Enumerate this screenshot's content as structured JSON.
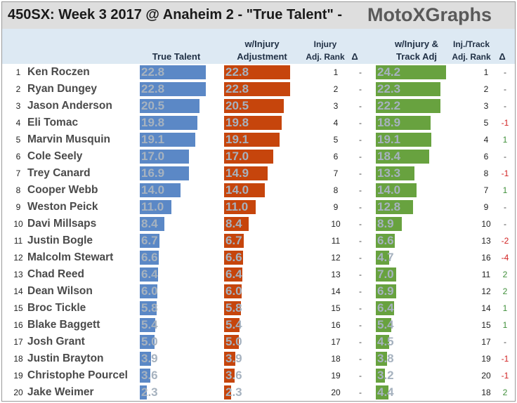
{
  "title": "450SX: Week 3 2017 @ Anaheim 2 - \"True Talent\" -",
  "brand": "MotoXGraphs",
  "headers": {
    "true_talent": "True Talent",
    "injury_adj": [
      "w/Injury",
      "Adjustment"
    ],
    "injury_rank": [
      "Injury",
      "Adj. Rank"
    ],
    "delta": "Δ",
    "track_adj": [
      "w/Injury &",
      "Track Adj"
    ],
    "track_rank": [
      "Inj./Track",
      "Adj. Rank"
    ],
    "delta2": "Δ"
  },
  "colors": {
    "true_talent": "#5b88c6",
    "injury_adj": "#c6450c",
    "track_adj": "#68a23f",
    "header_bg": "#dde9f3",
    "title_bg": "#dedede"
  },
  "chart_data": {
    "type": "bar",
    "categories": [
      "Ken Roczen",
      "Ryan Dungey",
      "Jason Anderson",
      "Eli Tomac",
      "Marvin Musquin",
      "Cole Seely",
      "Trey Canard",
      "Cooper Webb",
      "Weston Peick",
      "Davi Millsaps",
      "Justin Bogle",
      "Malcolm Stewart",
      "Chad Reed",
      "Dean Wilson",
      "Broc Tickle",
      "Blake Baggett",
      "Josh Grant",
      "Justin Brayton",
      "Christophe Pourcel",
      "Jake Weimer"
    ],
    "rows": [
      {
        "rank": "1",
        "name": "Ken Roczen",
        "tt": "22.8",
        "inj": "22.8",
        "inj_rank": "1",
        "d1": "-",
        "trk": "24.2",
        "trk_rank": "1",
        "d2": "-"
      },
      {
        "rank": "2",
        "name": "Ryan Dungey",
        "tt": "22.8",
        "inj": "22.8",
        "inj_rank": "2",
        "d1": "-",
        "trk": "22.3",
        "trk_rank": "2",
        "d2": "-"
      },
      {
        "rank": "3",
        "name": "Jason Anderson",
        "tt": "20.5",
        "inj": "20.5",
        "inj_rank": "3",
        "d1": "-",
        "trk": "22.2",
        "trk_rank": "3",
        "d2": "-"
      },
      {
        "rank": "4",
        "name": "Eli Tomac",
        "tt": "19.8",
        "inj": "19.8",
        "inj_rank": "4",
        "d1": "-",
        "trk": "18.9",
        "trk_rank": "5",
        "d2": "-1"
      },
      {
        "rank": "5",
        "name": "Marvin Musquin",
        "tt": "19.1",
        "inj": "19.1",
        "inj_rank": "5",
        "d1": "-",
        "trk": "19.1",
        "trk_rank": "4",
        "d2": "1"
      },
      {
        "rank": "6",
        "name": "Cole Seely",
        "tt": "17.0",
        "inj": "17.0",
        "inj_rank": "6",
        "d1": "-",
        "trk": "18.4",
        "trk_rank": "6",
        "d2": "-"
      },
      {
        "rank": "7",
        "name": "Trey Canard",
        "tt": "16.9",
        "inj": "14.9",
        "inj_rank": "7",
        "d1": "-",
        "trk": "13.3",
        "trk_rank": "8",
        "d2": "-1"
      },
      {
        "rank": "8",
        "name": "Cooper Webb",
        "tt": "14.0",
        "inj": "14.0",
        "inj_rank": "8",
        "d1": "-",
        "trk": "14.0",
        "trk_rank": "7",
        "d2": "1"
      },
      {
        "rank": "9",
        "name": "Weston Peick",
        "tt": "11.0",
        "inj": "11.0",
        "inj_rank": "9",
        "d1": "-",
        "trk": "12.8",
        "trk_rank": "9",
        "d2": "-"
      },
      {
        "rank": "10",
        "name": "Davi Millsaps",
        "tt": "8.4",
        "inj": "8.4",
        "inj_rank": "10",
        "d1": "-",
        "trk": "8.9",
        "trk_rank": "10",
        "d2": "-"
      },
      {
        "rank": "11",
        "name": "Justin Bogle",
        "tt": "6.7",
        "inj": "6.7",
        "inj_rank": "11",
        "d1": "-",
        "trk": "6.6",
        "trk_rank": "13",
        "d2": "-2"
      },
      {
        "rank": "12",
        "name": "Malcolm Stewart",
        "tt": "6.6",
        "inj": "6.6",
        "inj_rank": "12",
        "d1": "-",
        "trk": "4.7",
        "trk_rank": "16",
        "d2": "-4"
      },
      {
        "rank": "13",
        "name": "Chad Reed",
        "tt": "6.4",
        "inj": "6.4",
        "inj_rank": "13",
        "d1": "-",
        "trk": "7.0",
        "trk_rank": "11",
        "d2": "2"
      },
      {
        "rank": "14",
        "name": "Dean Wilson",
        "tt": "6.0",
        "inj": "6.0",
        "inj_rank": "14",
        "d1": "-",
        "trk": "6.9",
        "trk_rank": "12",
        "d2": "2"
      },
      {
        "rank": "15",
        "name": "Broc Tickle",
        "tt": "5.8",
        "inj": "5.8",
        "inj_rank": "15",
        "d1": "-",
        "trk": "6.4",
        "trk_rank": "14",
        "d2": "1"
      },
      {
        "rank": "16",
        "name": "Blake Baggett",
        "tt": "5.4",
        "inj": "5.4",
        "inj_rank": "16",
        "d1": "-",
        "trk": "5.4",
        "trk_rank": "15",
        "d2": "1"
      },
      {
        "rank": "17",
        "name": "Josh Grant",
        "tt": "5.0",
        "inj": "5.0",
        "inj_rank": "17",
        "d1": "-",
        "trk": "4.5",
        "trk_rank": "17",
        "d2": "-"
      },
      {
        "rank": "18",
        "name": "Justin Brayton",
        "tt": "3.9",
        "inj": "3.9",
        "inj_rank": "18",
        "d1": "-",
        "trk": "3.8",
        "trk_rank": "19",
        "d2": "-1"
      },
      {
        "rank": "19",
        "name": "Christophe Pourcel",
        "tt": "3.6",
        "inj": "3.6",
        "inj_rank": "19",
        "d1": "-",
        "trk": "3.2",
        "trk_rank": "20",
        "d2": "-1"
      },
      {
        "rank": "20",
        "name": "Jake Weimer",
        "tt": "2.3",
        "inj": "2.3",
        "inj_rank": "20",
        "d1": "-",
        "trk": "4.4",
        "trk_rank": "18",
        "d2": "2"
      }
    ]
  }
}
